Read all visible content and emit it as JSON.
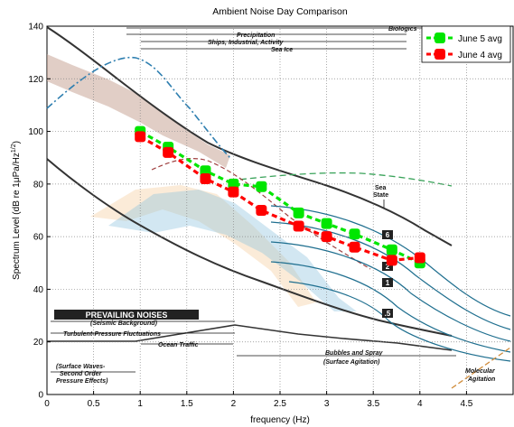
{
  "chart_data": {
    "type": "line",
    "title": "Ambient Noise Day Comparison",
    "xlabel": "frequency (Hz)",
    "ylabel": "Spectrum Level (dB re 1μPa/Hz",
    "ylabel_sup": "1/2",
    "ylabel_close": ")",
    "xlim": [
      0,
      5
    ],
    "ylim": [
      0,
      140
    ],
    "xticks": [
      0,
      0.5,
      1,
      1.5,
      2,
      2.5,
      3,
      3.5,
      4,
      4.5
    ],
    "xtick_labels": [
      "0",
      "0.5",
      "1",
      "1.5",
      "2",
      "2.5",
      "3",
      "3.5",
      "4",
      "4.5"
    ],
    "yticks": [
      0,
      20,
      40,
      60,
      80,
      100,
      120,
      140
    ],
    "ytick_labels": [
      "0",
      "20",
      "40",
      "60",
      "80",
      "100",
      "120",
      "140"
    ],
    "grid": true,
    "legend_position": "top-right",
    "series": [
      {
        "name": "June 5 avg",
        "color": "#00e600",
        "x": [
          1.0,
          1.3,
          1.7,
          2.0,
          2.3,
          2.7,
          3.0,
          3.3,
          3.7,
          4.0
        ],
        "y": [
          100,
          94,
          85,
          80,
          79,
          69,
          65,
          61,
          55,
          50
        ]
      },
      {
        "name": "June 4 avg",
        "color": "#ff0000",
        "x": [
          1.0,
          1.3,
          1.7,
          2.0,
          2.3,
          2.7,
          3.0,
          3.3,
          3.7,
          4.0
        ],
        "y": [
          98,
          92,
          82,
          77,
          70,
          64,
          60,
          56,
          51,
          52
        ]
      }
    ],
    "background_annotations": {
      "biologics": "Biologics",
      "precipitation": "Precipitation",
      "ships": "Ships, Industrial, Activity",
      "sea_ice": "Sea Ice",
      "sea_state": "Sea",
      "sea_state_2": "State",
      "prevailing": "PREVAILING NOISES",
      "seismic": "(Seismic Background)",
      "turbulent": "Turbulent-Pressure Fluctuations",
      "ocean_traffic": "Ocean Traffic",
      "bubbles": "Bubbles and Spray",
      "surface_agitation": "(Surface Agitation)",
      "surface_waves_1": "(Surface Waves-",
      "surface_waves_2": "Second Order",
      "surface_waves_3": "Pressure Effects)",
      "molecular_1": "Molecular",
      "molecular_2": "Agitation",
      "state_6": "6",
      "state_2": "2",
      "state_1": "1",
      "state_05": ".5"
    }
  }
}
